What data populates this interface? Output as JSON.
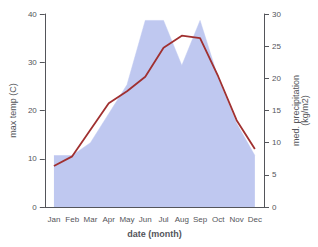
{
  "chart_data": {
    "type": "line",
    "xlabel": "date (month)",
    "ylabel": "max temp (C)",
    "y2label": "med. precipitation\n(kg/m2)",
    "categories": [
      "Jan",
      "Feb",
      "Mar",
      "Apr",
      "May",
      "Jun",
      "Jul",
      "Aug",
      "Sep",
      "Oct",
      "Nov",
      "Dec"
    ],
    "series": [
      {
        "type": "area",
        "axis": "y2",
        "color": "#bfc8f0",
        "values": [
          8.0,
          8.0,
          10.0,
          14.5,
          19.0,
          29.0,
          29.0,
          22.0,
          29.0,
          20.0,
          13.0,
          8.0
        ]
      },
      {
        "type": "line",
        "color": "#a03030",
        "values": [
          8.5,
          10.5,
          16.0,
          21.5,
          24.0,
          27.0,
          33.0,
          35.5,
          35.0,
          27.0,
          18.0,
          12.0
        ]
      }
    ],
    "ylim": [
      0,
      40
    ],
    "yticks": [
      0,
      10,
      20,
      30,
      40
    ],
    "y2lim": [
      0,
      30
    ],
    "y2ticks": [
      0,
      5,
      10,
      15,
      20,
      25,
      30
    ],
    "grid": false
  }
}
